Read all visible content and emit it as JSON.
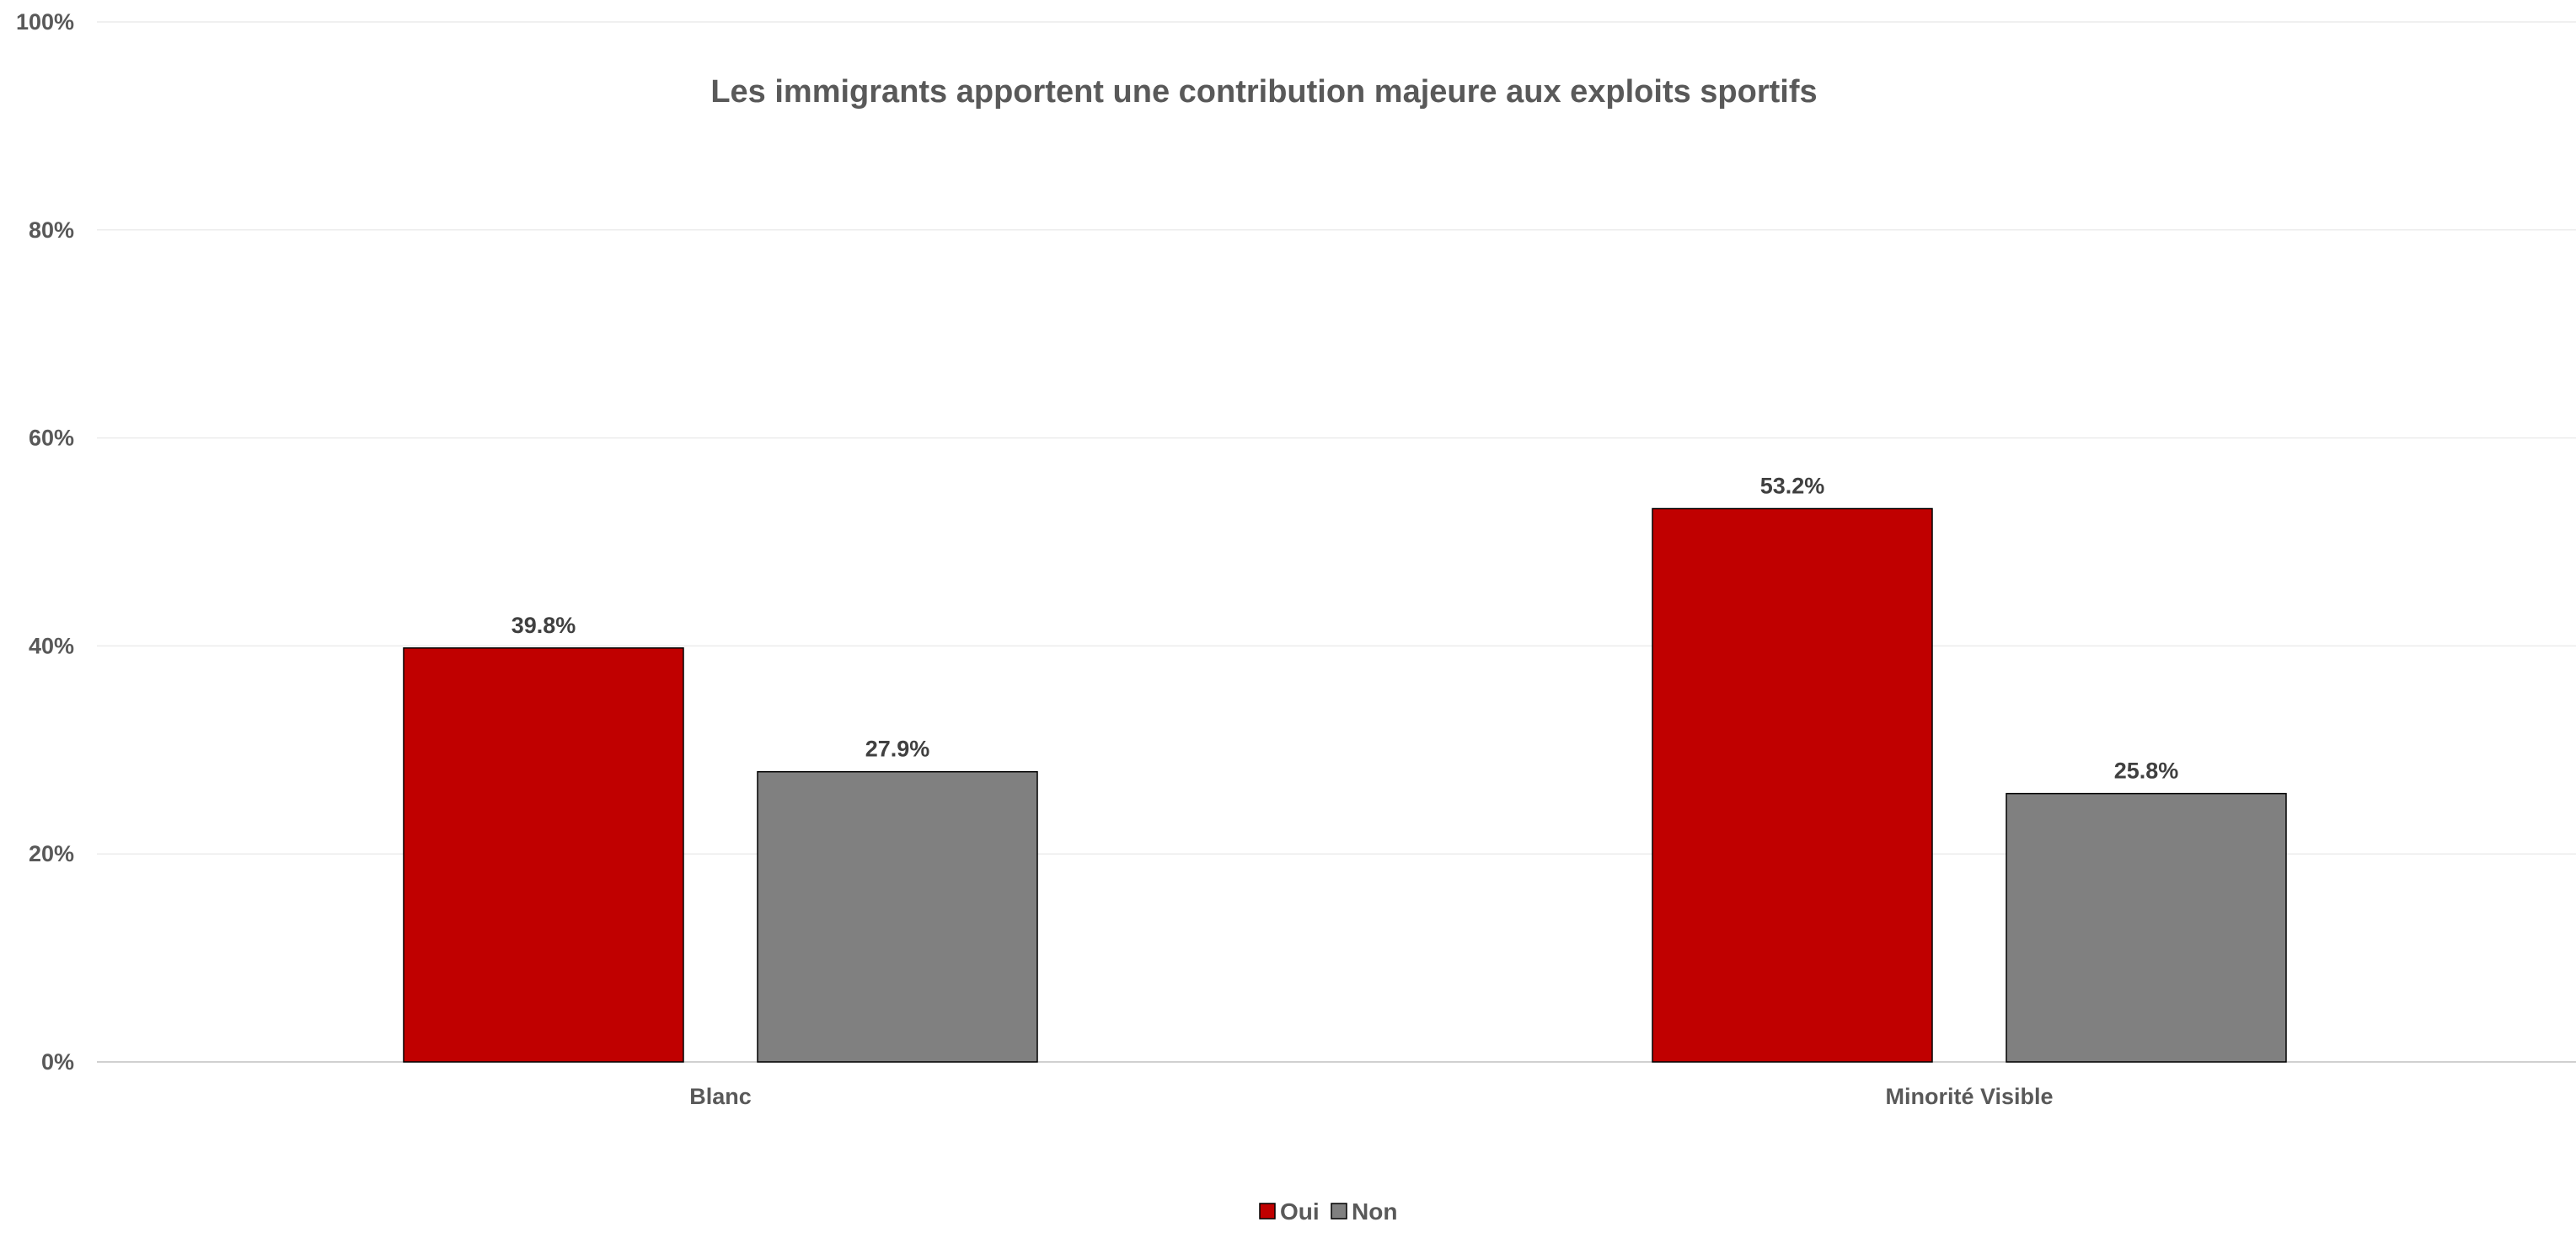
{
  "chart_data": {
    "type": "bar",
    "title": "Les immigrants apportent une contribution majeure aux exploits sportifs",
    "xlabel": "",
    "ylabel": "",
    "categories": [
      "Blanc",
      "Minorité Visible"
    ],
    "series": [
      {
        "name": "Oui",
        "color": "#C00000",
        "values": [
          39.8,
          53.2
        ],
        "labels": [
          "39.8%",
          "53.2%"
        ]
      },
      {
        "name": "Non",
        "color": "#808080",
        "values": [
          27.9,
          25.8
        ],
        "labels": [
          "27.9%",
          "25.8%"
        ]
      }
    ],
    "ylim": [
      0,
      100
    ],
    "yticks": [
      0,
      20,
      40,
      60,
      80,
      100
    ],
    "ytick_labels": [
      "0%",
      "20%",
      "40%",
      "60%",
      "80%",
      "100%"
    ],
    "grid": true,
    "legend_position": "bottom"
  }
}
